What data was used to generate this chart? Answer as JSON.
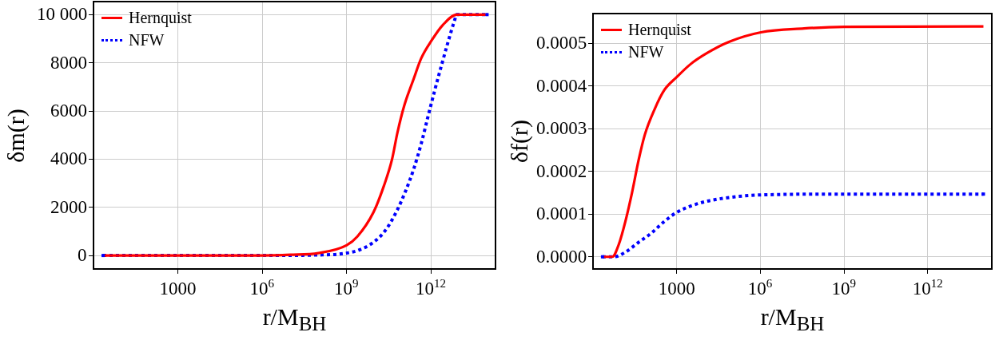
{
  "chart_data": [
    {
      "type": "line",
      "xlabel": "r/M$_{BH}$",
      "ylabel": "δm(r)",
      "log": "x",
      "grid": true,
      "legend": "top left",
      "marker": "none",
      "xlim": [
        1,
        200000000000000.0
      ],
      "xticks": [
        1000,
        {
          "value": 1000000.0,
          "label": "10$^{6}$"
        },
        {
          "value": 1000000000.0,
          "label": "10$^{9}$"
        },
        {
          "value": 1000000000000.0,
          "label": "10$^{12}$"
        }
      ],
      "ylim": [
        -560,
        10540
      ],
      "yticks": [
        0,
        2000,
        4000,
        6000,
        8000,
        {
          "value": 10000,
          "label": "10 000"
        }
      ],
      "series": [
        {
          "name": "Hernquist",
          "color": "#ff0000",
          "line_style": "solid",
          "x": [
            2.19,
            1000000.0,
            10000000.0,
            100000000.0,
            1000000000.0,
            2450000000.0,
            9100000000.0,
            21400000000.0,
            41700000000.0,
            64600000000.0,
            112000000000.0,
            240000000000.0,
            457000000000.0,
            1100000000000.0,
            2630000000000.0,
            8300000000000.0,
            100000000000000.0
          ],
          "values": [
            0,
            0,
            30,
            100,
            420,
            790,
            1790,
            2890,
            3990,
            5090,
            6200,
            7300,
            8190,
            8950,
            9560,
            10000,
            10000
          ]
        },
        {
          "name": "NFW",
          "color": "#0000ff",
          "line_style": "dotted",
          "x": [
            2.19,
            1000000.0,
            100000000.0,
            790000000.0,
            3000000000.0,
            11200000000.0,
            27000000000.0,
            64600000000.0,
            126000000000.0,
            240000000000.0,
            457000000000.0,
            790000000000.0,
            1380000000000.0,
            2340000000000.0,
            4070000000000.0,
            7080000000000.0,
            8300000000000.0,
            100000000000000.0
          ],
          "values": [
            0,
            0,
            20,
            80,
            240,
            630,
            1120,
            1900,
            2670,
            3550,
            4650,
            5760,
            6860,
            7850,
            8850,
            9780,
            10000,
            10000
          ]
        }
      ]
    },
    {
      "type": "line",
      "xlabel": "r/M$_{BH}$",
      "ylabel": "δf(r)",
      "log": "x",
      "grid": true,
      "legend": "top left",
      "marker": "none",
      "xlim": [
        1,
        200000000000000.0
      ],
      "xticks": [
        1000,
        {
          "value": 1000000.0,
          "label": "10$^{6}$"
        },
        {
          "value": 1000000000.0,
          "label": "10$^{9}$"
        },
        {
          "value": 1000000000000.0,
          "label": "10$^{12}$"
        }
      ],
      "ylim": [
        -2.85e-05,
        0.00057
      ],
      "yticks": [
        {
          "value": 0,
          "label": "0.0000"
        },
        0.0001,
        0.0002,
        0.0003,
        0.0004,
        0.0005
      ],
      "series": [
        {
          "name": "Hernquist",
          "color": "#ff0000",
          "line_style": "solid",
          "x": [
            2.19,
            4.9,
            8.5,
            14.5,
            25,
            43,
            72,
            162,
            363,
            1000,
            3090,
            12000,
            77600,
            1050000.0,
            37000000.0,
            1000000000.0,
            100000000000000.0
          ],
          "values": [
            0,
            0,
            3e-05,
            8.3e-05,
            0.00015,
            0.000226,
            0.000286,
            0.000346,
            0.000391,
            0.000421,
            0.000451,
            0.000477,
            0.000504,
            0.000526,
            0.000535,
            0.000539,
            0.00054
          ]
        },
        {
          "name": "NFW",
          "color": "#0000ff",
          "line_style": "dotted",
          "x": [
            2.19,
            5.6,
            14.5,
            43,
            126,
            363,
            1000,
            5370,
            45700,
            1050000.0,
            1000000000.0,
            100000000000000.0
          ],
          "values": [
            0,
            0,
            1.1e-05,
            3.4e-05,
            5.6e-05,
            8.3e-05,
            0.000104,
            0.000124,
            0.000137,
            0.000145,
            0.000147,
            0.000147
          ]
        }
      ]
    }
  ]
}
